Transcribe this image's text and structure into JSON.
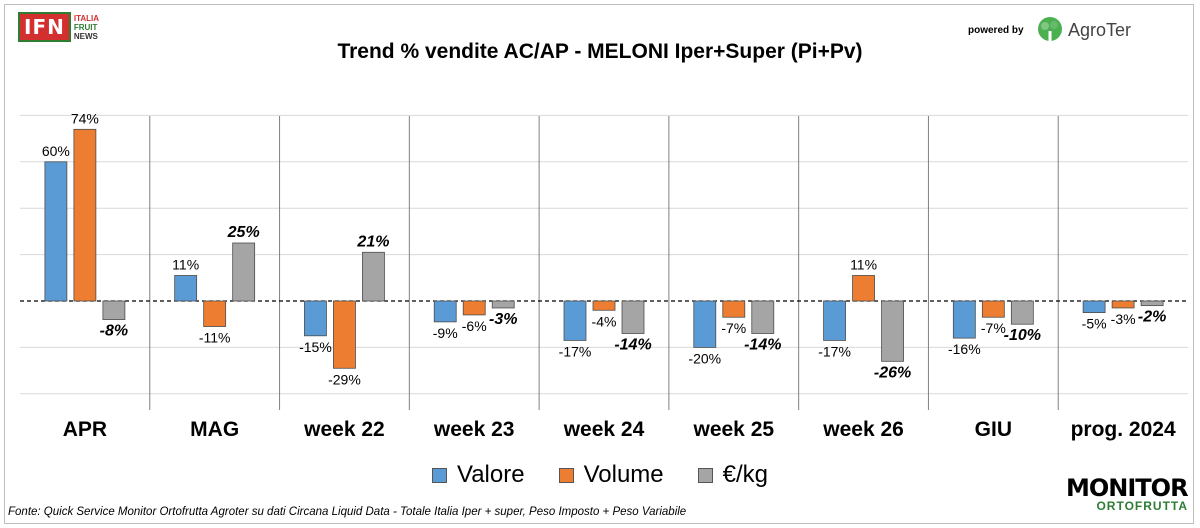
{
  "header": {
    "ifn_logo": "IFN",
    "ifn_lines": [
      "ITALIA",
      "FRUIT",
      "NEWS"
    ],
    "powered_by": "powered by",
    "agroter_name": "AgroTer"
  },
  "chart_data": {
    "type": "bar",
    "title": "Trend % vendite AC/AP - MELONI  Iper+Super (Pi+Pv)",
    "categories": [
      "APR",
      "MAG",
      "week 22",
      "week 23",
      "week 24",
      "week 25",
      "week 26",
      "GIU",
      "prog. 2024"
    ],
    "series": [
      {
        "name": "Valore",
        "color": "#5b9bd5",
        "values": [
          60,
          11,
          -15,
          -9,
          -17,
          -20,
          -17,
          -16,
          -5
        ]
      },
      {
        "name": "Volume",
        "color": "#ed7d31",
        "values": [
          74,
          -11,
          -29,
          -6,
          -4,
          -7,
          11,
          -7,
          -3
        ]
      },
      {
        "name": "€/kg",
        "color": "#a5a5a5",
        "values": [
          -8,
          25,
          21,
          -3,
          -14,
          -14,
          -26,
          -10,
          -2
        ]
      }
    ],
    "ylim": [
      -43,
      81
    ],
    "grid": true,
    "legend_position": "bottom"
  },
  "footnote": "Fonte: Quick Service Monitor Ortofrutta Agroter su dati Circana Liquid Data - Totale Italia Iper + super, Peso Imposto + Peso Variabile",
  "monitor_logo": {
    "top": "MONITOR",
    "bottom": "ORTOFRUTTA"
  }
}
